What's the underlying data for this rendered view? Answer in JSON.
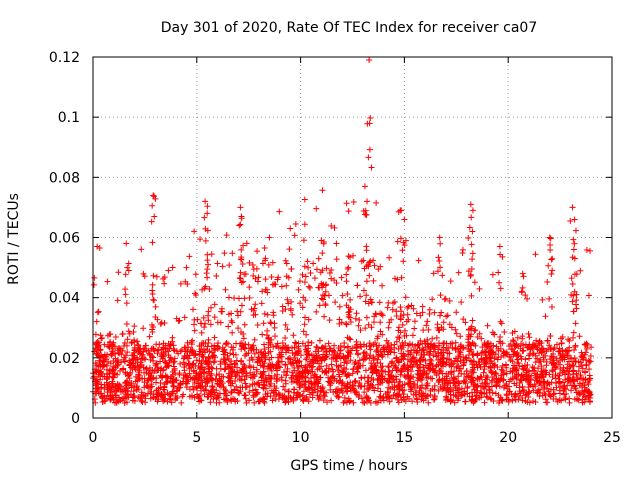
{
  "chart_data": {
    "type": "scatter",
    "title": "Day 301 of 2020, Rate Of TEC Index for receiver ca07",
    "xlabel": "GPS time / hours",
    "ylabel": "ROTI / TECUs",
    "xlim": [
      0,
      25
    ],
    "ylim": [
      0,
      0.12
    ],
    "xticks": [
      0,
      5,
      10,
      15,
      20,
      25
    ],
    "xtick_labels": [
      "0",
      "5",
      "10",
      "15",
      "20",
      "25"
    ],
    "yticks": [
      0,
      0.02,
      0.04,
      0.06,
      0.08,
      0.1,
      0.12
    ],
    "ytick_labels": [
      "0",
      "0.02",
      "0.04",
      "0.06",
      "0.08",
      "0.1",
      "0.12"
    ],
    "grid": true,
    "marker": "plus",
    "color": "#ff0000",
    "series": [
      {
        "name": "ROTI",
        "x_range": [
          0,
          24
        ],
        "baseline_min": 0.005,
        "baseline_max": 0.025,
        "notable_points": [
          {
            "x": 13.3,
            "y": 0.119
          },
          {
            "x": 13.1,
            "y": 0.077
          },
          {
            "x": 13.2,
            "y": 0.072
          },
          {
            "x": 2.9,
            "y": 0.074
          },
          {
            "x": 2.95,
            "y": 0.067
          },
          {
            "x": 5.4,
            "y": 0.072
          },
          {
            "x": 5.5,
            "y": 0.068
          },
          {
            "x": 7.1,
            "y": 0.07
          },
          {
            "x": 7.15,
            "y": 0.067
          },
          {
            "x": 18.2,
            "y": 0.071
          },
          {
            "x": 18.3,
            "y": 0.069
          },
          {
            "x": 23.1,
            "y": 0.07
          },
          {
            "x": 23.2,
            "y": 0.066
          },
          {
            "x": 14.8,
            "y": 0.069
          },
          {
            "x": 15.0,
            "y": 0.066
          },
          {
            "x": 9.5,
            "y": 0.063
          },
          {
            "x": 11.0,
            "y": 0.059
          },
          {
            "x": 1.6,
            "y": 0.058
          },
          {
            "x": 0.2,
            "y": 0.057
          },
          {
            "x": 22.0,
            "y": 0.06
          },
          {
            "x": 16.7,
            "y": 0.06
          },
          {
            "x": 19.6,
            "y": 0.057
          },
          {
            "x": 4.5,
            "y": 0.05
          },
          {
            "x": 12.3,
            "y": 0.05
          },
          {
            "x": 20.7,
            "y": 0.048
          },
          {
            "x": 8.5,
            "y": 0.06
          }
        ]
      }
    ]
  }
}
